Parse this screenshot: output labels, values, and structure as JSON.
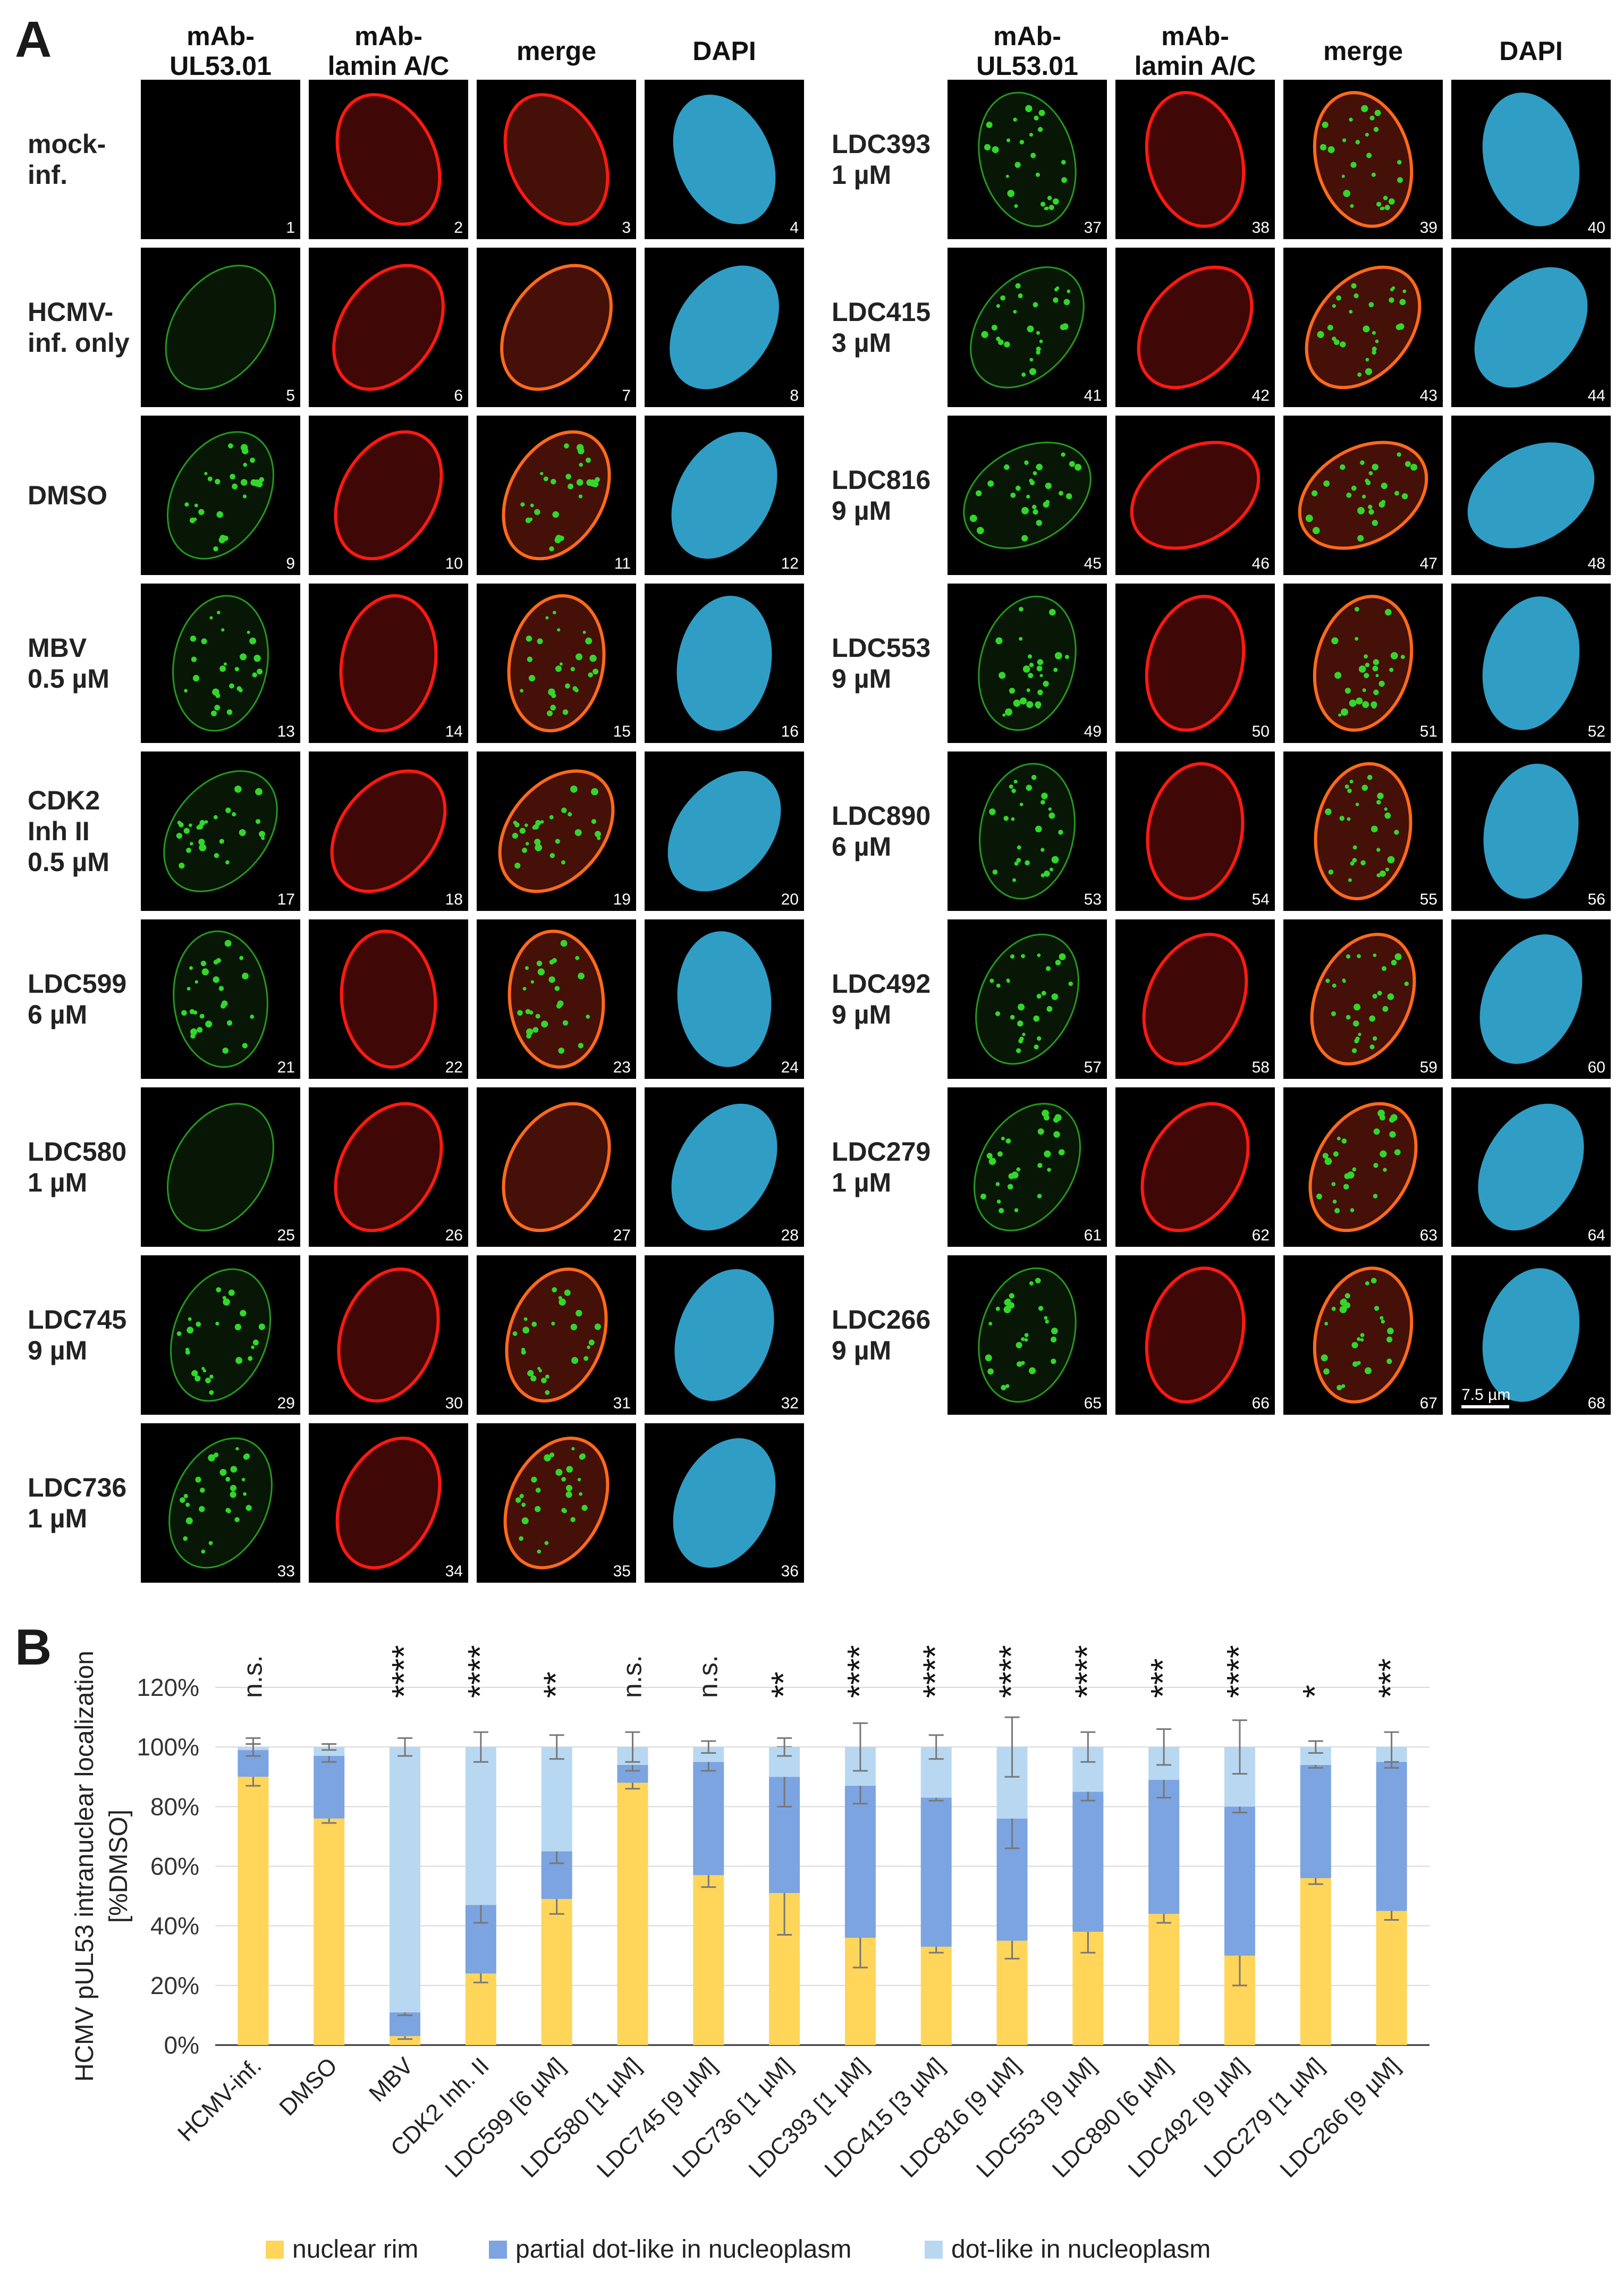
{
  "panel_a": {
    "label": "A",
    "column_headers": [
      "mAb-\nUL53.01",
      "mAb-\nlamin A/C",
      "merge",
      "DAPI"
    ],
    "rows_left": [
      {
        "label": "mock-\ninf.",
        "tiles": [
          "1",
          "2",
          "3",
          "4"
        ]
      },
      {
        "label": "HCMV-\ninf. only",
        "tiles": [
          "5",
          "6",
          "7",
          "8"
        ]
      },
      {
        "label": "DMSO",
        "tiles": [
          "9",
          "10",
          "11",
          "12"
        ]
      },
      {
        "label": "MBV\n0.5 µM",
        "tiles": [
          "13",
          "14",
          "15",
          "16"
        ]
      },
      {
        "label": "CDK2\nInh II\n0.5 µM",
        "tiles": [
          "17",
          "18",
          "19",
          "20"
        ]
      },
      {
        "label": "LDC599\n6 µM",
        "tiles": [
          "21",
          "22",
          "23",
          "24"
        ]
      },
      {
        "label": "LDC580\n1 µM",
        "tiles": [
          "25",
          "26",
          "27",
          "28"
        ]
      },
      {
        "label": "LDC745\n9 µM",
        "tiles": [
          "29",
          "30",
          "31",
          "32"
        ]
      },
      {
        "label": "LDC736\n1 µM",
        "tiles": [
          "33",
          "34",
          "35",
          "36"
        ]
      }
    ],
    "rows_right": [
      {
        "label": "LDC393\n1 µM",
        "tiles": [
          "37",
          "38",
          "39",
          "40"
        ]
      },
      {
        "label": "LDC415\n3 µM",
        "tiles": [
          "41",
          "42",
          "43",
          "44"
        ]
      },
      {
        "label": "LDC816\n9 µM",
        "tiles": [
          "45",
          "46",
          "47",
          "48"
        ]
      },
      {
        "label": "LDC553\n9 µM",
        "tiles": [
          "49",
          "50",
          "51",
          "52"
        ]
      },
      {
        "label": "LDC890\n6 µM",
        "tiles": [
          "53",
          "54",
          "55",
          "56"
        ]
      },
      {
        "label": "LDC492\n9 µM",
        "tiles": [
          "57",
          "58",
          "59",
          "60"
        ]
      },
      {
        "label": "LDC279\n1 µM",
        "tiles": [
          "61",
          "62",
          "63",
          "64"
        ]
      },
      {
        "label": "LDC266\n9 µM",
        "tiles": [
          "65",
          "66",
          "67",
          "68"
        ]
      }
    ],
    "scale_bar_label": "7.5 µm",
    "channel_colors": {
      "green": "#33d62a",
      "red": "#ff1a10",
      "merge_rim": "#ff6a1a",
      "dapi": "#38b8e8"
    }
  },
  "panel_b": {
    "label": "B",
    "chart_data": {
      "type": "bar",
      "stacked": true,
      "ylabel": "HCMV pUL53 intranuclear localization\n[%DMSO]",
      "xlabel": "",
      "ylim": [
        0,
        120
      ],
      "yticks": [
        "0%",
        "20%",
        "40%",
        "60%",
        "80%",
        "100%",
        "120%"
      ],
      "grid": true,
      "legend_position": "bottom",
      "categories": [
        "HCMV-inf.",
        "DMSO",
        "MBV",
        "CDK2 Inh. II",
        "LDC599 [6 µM]",
        "LDC580 [1 µM]",
        "LDC745 [9 µM]",
        "LDC736 [1 µM]",
        "LDC393 [1 µM]",
        "LDC415 [3 µM]",
        "LDC816 [9 µM]",
        "LDC553 [9 µM]",
        "LDC890 [6 µM]",
        "LDC492 [9 µM]",
        "LDC279 [1 µM]",
        "LDC266 [9 µM]"
      ],
      "series": [
        {
          "name": "nuclear rim",
          "color": "#ffd55a",
          "values": [
            90,
            76,
            3,
            24,
            49,
            88,
            57,
            51,
            36,
            33,
            35,
            38,
            44,
            30,
            56,
            45
          ],
          "err": [
            3,
            1.5,
            1,
            3,
            5,
            2,
            4,
            14,
            10,
            2,
            6,
            7,
            3,
            10,
            2,
            3
          ]
        },
        {
          "name": "partial dot-like in nucleoplasm",
          "color": "#7ca4e0",
          "values": [
            9,
            21,
            8,
            23,
            16,
            6,
            38,
            39,
            51,
            50,
            41,
            47,
            45,
            50,
            38,
            50
          ],
          "err": [
            2,
            2,
            1,
            6,
            4,
            2,
            3,
            10,
            6,
            1,
            10,
            3,
            6,
            2,
            1,
            2
          ]
        },
        {
          "name": "dot-like in nucleoplasm",
          "color": "#b8d8f2",
          "values": [
            1,
            3,
            89,
            53,
            35,
            6,
            5,
            10,
            13,
            17,
            24,
            15,
            11,
            20,
            6,
            5
          ],
          "err": [
            3,
            1,
            3,
            5,
            4,
            5,
            2,
            3,
            8,
            4,
            10,
            5,
            6,
            9,
            2,
            5
          ]
        }
      ],
      "significance": [
        "n.s.",
        "",
        "****",
        "****",
        "**",
        "n.s.",
        "n.s.",
        "**",
        "****",
        "****",
        "****",
        "****",
        "***",
        "****",
        "*",
        "***"
      ]
    }
  }
}
